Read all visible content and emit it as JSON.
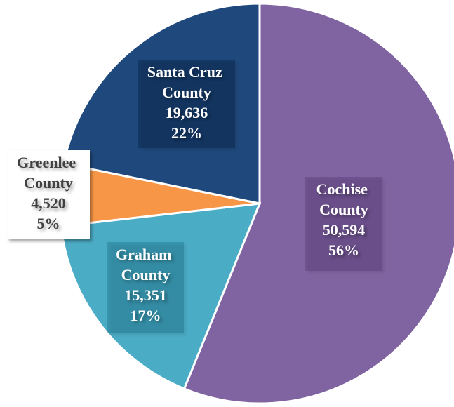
{
  "chart_data": {
    "type": "pie",
    "categories": [
      "Cochise County",
      "Graham County",
      "Greenlee County",
      "Santa Cruz County"
    ],
    "values": [
      50594,
      15351,
      4520,
      19636
    ],
    "value_labels": [
      "50,594",
      "15,351",
      "4,520",
      "19,636"
    ],
    "percent_labels": [
      "56%",
      "17%",
      "5%",
      "22%"
    ],
    "colors": [
      "#8064a2",
      "#4bacc6",
      "#f79646",
      "#1f497d"
    ]
  }
}
